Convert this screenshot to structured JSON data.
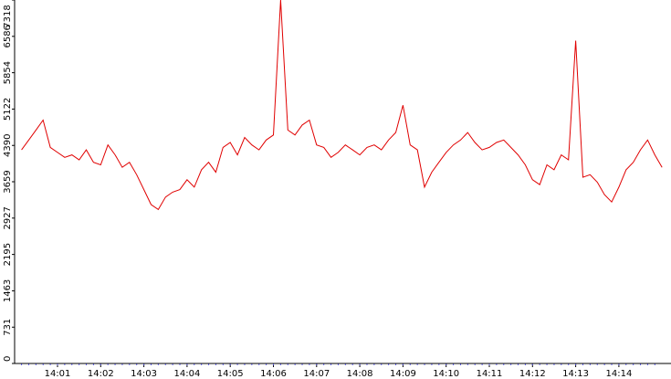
{
  "chart_data": {
    "type": "line",
    "title": "",
    "xlabel": "",
    "ylabel": "",
    "ylim": [
      0,
      7318
    ],
    "yticks": [
      "0",
      "731",
      "1463",
      "2195",
      "2927",
      "3659",
      "4390",
      "5122",
      "5854",
      "6586",
      "7318"
    ],
    "xticks": [
      "14:01",
      "14:02",
      "14:03",
      "14:04",
      "14:05",
      "14:06",
      "14:07",
      "14:08",
      "14:09",
      "14:10",
      "14:11",
      "14:12",
      "14:13",
      "14:14"
    ],
    "grid": false,
    "legend": "none",
    "colors": {
      "line": "#e00000",
      "axis": "#000000",
      "background": "#ffffff"
    },
    "series": [
      {
        "x": [
          "14:00:10",
          "14:00:20",
          "14:00:30",
          "14:00:40",
          "14:00:50",
          "14:01:00",
          "14:01:10",
          "14:01:20",
          "14:01:30",
          "14:01:40",
          "14:01:50",
          "14:02:00",
          "14:02:10",
          "14:02:20",
          "14:02:30",
          "14:02:40",
          "14:02:50",
          "14:03:00",
          "14:03:10",
          "14:03:20",
          "14:03:30",
          "14:03:40",
          "14:03:50",
          "14:04:00",
          "14:04:10",
          "14:04:20",
          "14:04:30",
          "14:04:40",
          "14:04:50",
          "14:05:00",
          "14:05:10",
          "14:05:20",
          "14:05:30",
          "14:05:40",
          "14:05:50",
          "14:06:00",
          "14:06:10",
          "14:06:20",
          "14:06:30",
          "14:06:40",
          "14:06:50",
          "14:07:00",
          "14:07:10",
          "14:07:20",
          "14:07:30",
          "14:07:40",
          "14:07:50",
          "14:08:00",
          "14:08:10",
          "14:08:20",
          "14:08:30",
          "14:08:40",
          "14:08:50",
          "14:09:00",
          "14:09:10",
          "14:09:20",
          "14:09:30",
          "14:09:40",
          "14:09:50",
          "14:10:00",
          "14:10:10",
          "14:10:20",
          "14:10:30",
          "14:10:40",
          "14:10:50",
          "14:11:00",
          "14:11:10",
          "14:11:20",
          "14:11:30",
          "14:11:40",
          "14:11:50",
          "14:12:00",
          "14:12:10",
          "14:12:20",
          "14:12:30",
          "14:12:40",
          "14:12:50",
          "14:13:00",
          "14:13:10",
          "14:13:20",
          "14:13:30",
          "14:13:40",
          "14:13:50",
          "14:14:00",
          "14:14:10",
          "14:14:20",
          "14:14:30",
          "14:14:40",
          "14:14:50",
          "14:15:00"
        ],
        "values": [
          4300,
          4500,
          4700,
          4900,
          4350,
          4250,
          4150,
          4200,
          4100,
          4300,
          4050,
          4000,
          4400,
          4200,
          3950,
          4050,
          3800,
          3500,
          3200,
          3100,
          3350,
          3450,
          3500,
          3700,
          3550,
          3900,
          4050,
          3850,
          4350,
          4450,
          4200,
          4550,
          4400,
          4300,
          4500,
          4600,
          7318,
          4700,
          4600,
          4800,
          4900,
          4400,
          4350,
          4150,
          4250,
          4400,
          4300,
          4200,
          4350,
          4400,
          4300,
          4500,
          4650,
          5200,
          4400,
          4300,
          3550,
          3850,
          4050,
          4250,
          4400,
          4500,
          4650,
          4450,
          4300,
          4350,
          4450,
          4500,
          4350,
          4200,
          4000,
          3700,
          3600,
          4000,
          3900,
          4200,
          4100,
          6500,
          3750,
          3800,
          3650,
          3400,
          3250,
          3550,
          3900,
          4050,
          4300,
          4500,
          4200,
          3950
        ]
      }
    ]
  }
}
